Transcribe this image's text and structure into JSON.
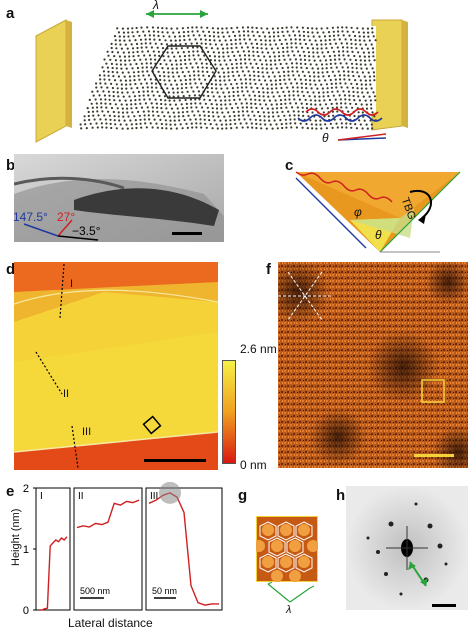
{
  "panels": {
    "a": {
      "letter": "a",
      "lambda_label": "λ",
      "theta_label": "θ"
    },
    "b": {
      "letter": "b",
      "angle_blue": "147.5°",
      "angle_red": "27°",
      "angle_black": "−3.5°"
    },
    "c": {
      "letter": "c",
      "phi_label": "φ",
      "theta_label": "θ",
      "tbg_label": "TBG"
    },
    "d": {
      "letter": "d",
      "scale_max": "2.6 nm",
      "scale_min": "0 nm",
      "line_labels": [
        "I",
        "II",
        "III"
      ]
    },
    "e": {
      "letter": "e",
      "ylabel": "Height (nm)",
      "xlabel": "Lateral distance",
      "yticks": [
        "2",
        "1",
        "0"
      ],
      "subpanel_labels": [
        "I",
        "II",
        "III"
      ],
      "scalebars": [
        "500 nm",
        "50 nm"
      ]
    },
    "f": {
      "letter": "f"
    },
    "g": {
      "letter": "g",
      "lambda_label": "λ"
    },
    "h": {
      "letter": "h"
    }
  },
  "colors": {
    "gold": "#e8d154",
    "afm_orange": "#e8541a",
    "afm_yellow": "#f2d33a",
    "stm_orange": "#c8631e",
    "blue": "#1f3a9e",
    "red": "#d02020",
    "green": "#2aa33a"
  },
  "chart_data": {
    "type": "line",
    "title": "",
    "xlabel": "Lateral distance",
    "ylabel": "Height (nm)",
    "ylim": [
      0,
      2
    ],
    "series": [
      {
        "values": [
          0,
          0,
          0.02,
          0.03,
          1.05,
          1.1,
          1.15,
          1.12,
          1.18,
          1.15,
          1.2
        ]
      },
      {
        "values": [
          1.35,
          1.38,
          1.36,
          1.42,
          1.4,
          1.44,
          1.75,
          1.72,
          1.78,
          1.76,
          1.8
        ]
      },
      {
        "values": [
          1.75,
          1.8,
          1.88,
          1.92,
          1.85,
          1.6,
          0.4,
          0.12,
          0.08,
          0.1,
          0.1
        ]
      }
    ]
  }
}
